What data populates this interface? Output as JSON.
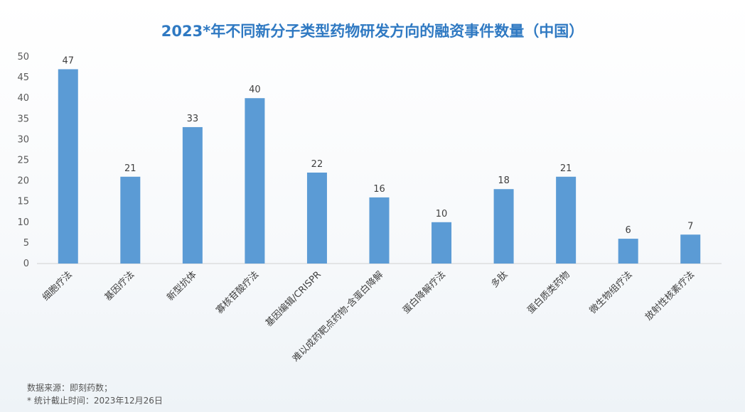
{
  "chart_data": {
    "type": "bar",
    "title": "2023*年不同新分子类型药物研发方向的融资事件数量（中国）",
    "categories": [
      "细胞疗法",
      "基因疗法",
      "新型抗体",
      "寡核苷酸疗法",
      "基因编辑/CRISPR",
      "难以成药靶点药物-含蛋白降解",
      "蛋白降解疗法",
      "多肽",
      "蛋白质类药物",
      "微生物组疗法",
      "放射性核素疗法"
    ],
    "values": [
      47,
      21,
      33,
      40,
      22,
      16,
      10,
      18,
      21,
      6,
      7
    ],
    "y_ticks": [
      "0",
      "5",
      "10",
      "15",
      "20",
      "25",
      "30",
      "35",
      "40",
      "45",
      "50"
    ],
    "ylim": [
      0,
      50
    ],
    "xlabel": "",
    "ylabel": "",
    "grid": false,
    "legend": "none",
    "bar_color": "#5b9bd5",
    "title_color": "#2f79c2"
  },
  "footnotes": {
    "source": "数据来源：即刻药数；",
    "cutoff": "* 统计截止时间：2023年12月26日"
  }
}
